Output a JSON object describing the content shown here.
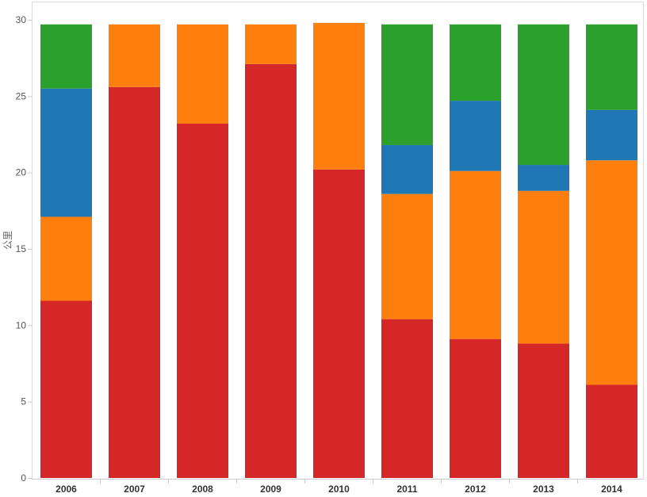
{
  "chart_data": {
    "type": "bar",
    "stacked": true,
    "title": "",
    "xlabel": "",
    "ylabel": "公里",
    "ylim": [
      0,
      30
    ],
    "yticks": [
      0,
      5,
      10,
      15,
      20,
      25,
      30
    ],
    "categories": [
      "2006",
      "2007",
      "2008",
      "2009",
      "2010",
      "2011",
      "2012",
      "2013",
      "2014"
    ],
    "series": [
      {
        "name": "red",
        "color": "#d62728",
        "values": [
          11.6,
          25.6,
          23.2,
          27.1,
          20.2,
          10.4,
          9.1,
          8.8,
          6.1
        ]
      },
      {
        "name": "orange",
        "color": "#ff7f0e",
        "values": [
          5.5,
          4.1,
          6.5,
          2.6,
          9.6,
          8.2,
          11.0,
          10.0,
          14.7
        ]
      },
      {
        "name": "blue",
        "color": "#1f77b4",
        "values": [
          8.4,
          0,
          0,
          0,
          0,
          3.2,
          4.6,
          1.7,
          3.3
        ]
      },
      {
        "name": "green",
        "color": "#2ca02c",
        "values": [
          4.2,
          0,
          0,
          0,
          0,
          7.9,
          5.0,
          9.2,
          5.6
        ]
      }
    ],
    "grid": false,
    "legend": "none"
  }
}
